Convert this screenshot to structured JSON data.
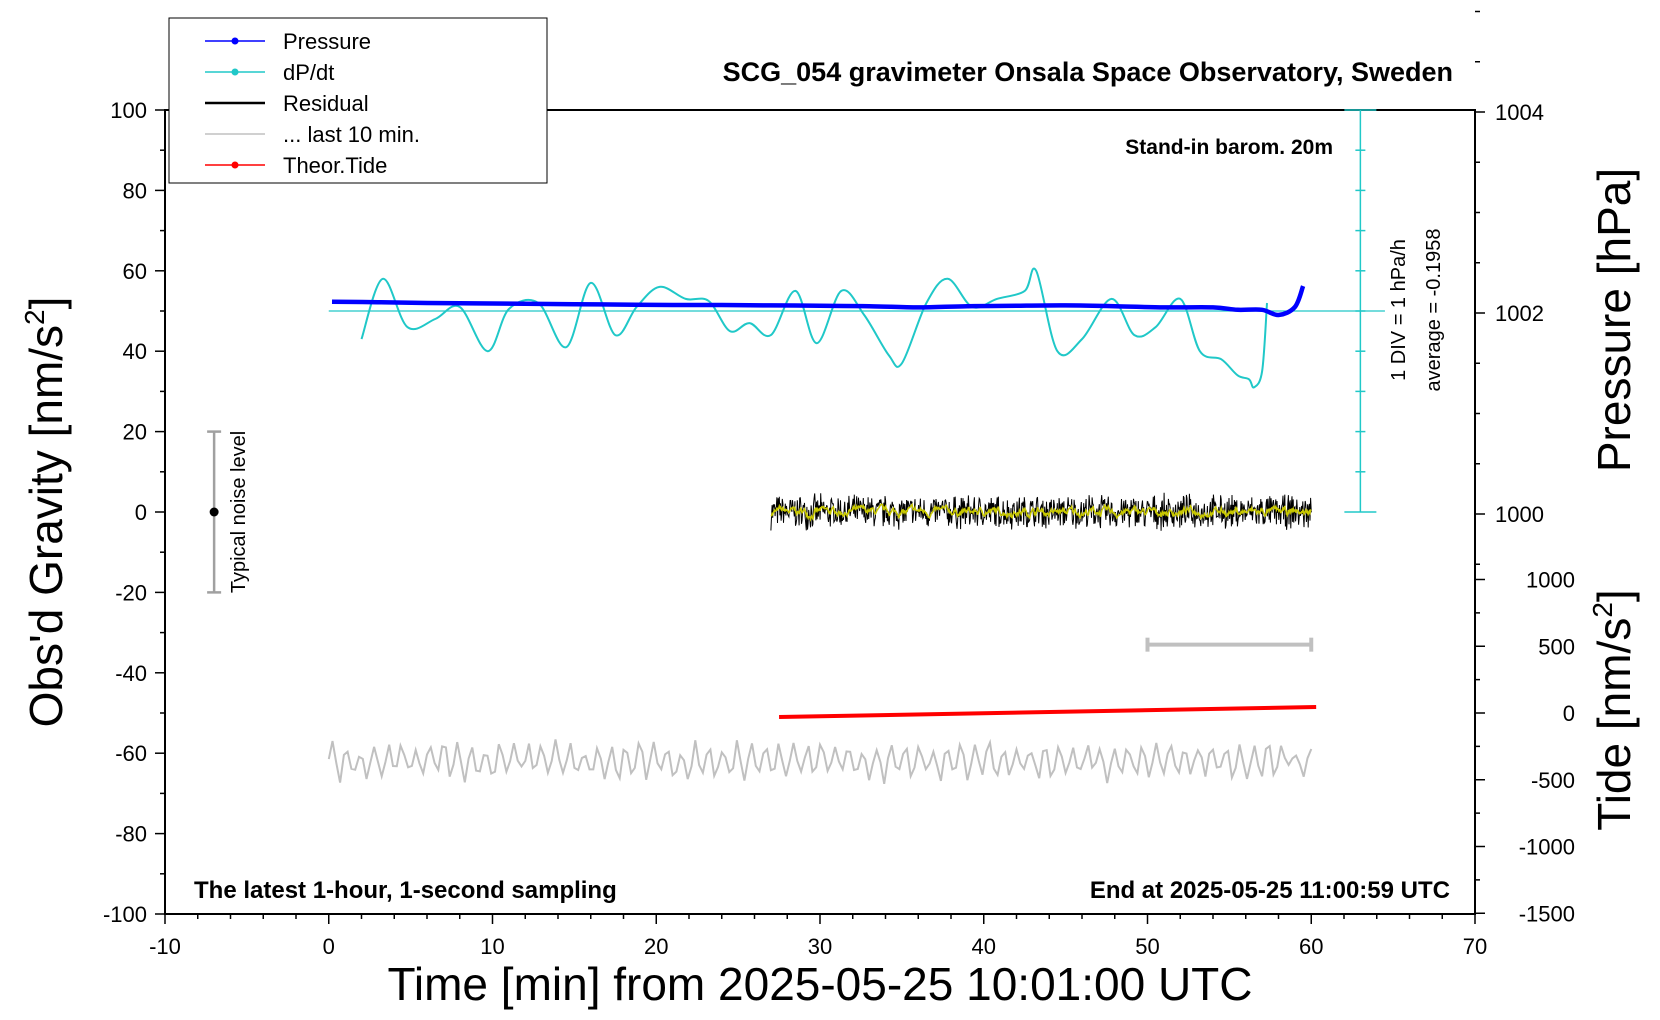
{
  "chart_data": {
    "type": "line",
    "title": "SCG_054 gravimeter Onsala Space Observatory, Sweden",
    "xlabel": "Time [min] from 2025-05-25 10:01:00 UTC",
    "ylabel_left": "Obs'd Gravity [nm/s",
    "ylabel_left_sup": "2",
    "ylabel_left_close": "]",
    "ylabel_right_pressure": "Pressure [hPa]",
    "ylabel_right_tide": "Tide [nm/s",
    "ylabel_right_tide_sup": "2",
    "ylabel_right_tide_close": "]",
    "xlim": [
      -10,
      70
    ],
    "ylim_left": [
      -100,
      100
    ],
    "x_ticks": [
      -10,
      0,
      10,
      20,
      30,
      40,
      50,
      60,
      70
    ],
    "y_ticks_left": [
      -100,
      -80,
      -60,
      -40,
      -20,
      0,
      20,
      40,
      60,
      80,
      100
    ],
    "pressure_ticks": [
      1000,
      1002,
      1004
    ],
    "tide_ticks": [
      -1500,
      -1000,
      -500,
      0,
      500,
      1000
    ],
    "annotations": {
      "barometer": "Stand-in barom. 20m",
      "sampling": "The latest 1-hour, 1-second sampling",
      "end_time": "End at 2025-05-25 11:00:59 UTC",
      "dpdt_scale": "1 DIV = 1 hPa/h",
      "dpdt_average": "average = -0.1958",
      "noise": "Typical noise level"
    },
    "legend": [
      {
        "label": "Pressure",
        "color": "#0000ff",
        "marker": true
      },
      {
        "label": "dP/dt",
        "color": "#20c8c8",
        "marker": true
      },
      {
        "label": "Residual",
        "color": "#000000",
        "marker": false
      },
      {
        "label": "... last 10 min.",
        "color": "#c0c0c0",
        "marker": false
      },
      {
        "label": "Theor.Tide",
        "color": "#ff0000",
        "marker": true
      }
    ],
    "colors": {
      "pressure": "#0000ff",
      "dpdt": "#20c8c8",
      "residual": "#000000",
      "residual_smooth": "#c8c800",
      "last10": "#c0c0c0",
      "tide": "#ff0000",
      "noise": "#a0a0a0"
    },
    "series": {
      "pressure": {
        "name": "Pressure",
        "x": [
          0.2,
          3,
          6,
          9,
          12,
          15,
          18,
          21,
          24,
          27,
          30,
          33,
          36,
          39,
          42,
          45,
          48,
          51,
          54,
          55.5,
          57,
          58,
          59,
          59.5
        ],
        "y": [
          52.3,
          52.2,
          52.0,
          51.9,
          51.8,
          51.7,
          51.6,
          51.5,
          51.5,
          51.4,
          51.3,
          51.2,
          50.9,
          51.2,
          51.3,
          51.4,
          51.2,
          50.9,
          50.9,
          50.3,
          50.3,
          49.0,
          51.0,
          56.2
        ]
      },
      "dpdt": {
        "name": "dP/dt",
        "baseline": 50,
        "x": [
          2,
          3.3,
          4.8,
          6.5,
          8,
          9.7,
          11,
          12.8,
          14.5,
          16,
          17.5,
          18.8,
          20.2,
          21.8,
          23.2,
          24.5,
          25.7,
          27,
          28.5,
          29.8,
          31.3,
          32.7,
          34.2,
          35,
          36.5,
          37.8,
          39.3,
          40.8,
          42.5,
          43.2,
          44.5,
          46,
          47.8,
          49.2,
          50.5,
          52,
          53.2,
          54.5,
          55.5,
          56.2,
          56.5,
          57,
          57.3
        ],
        "y": [
          43,
          58,
          46,
          48,
          51,
          40,
          50.5,
          52,
          41,
          57,
          44,
          51,
          56,
          53,
          52.5,
          45,
          47,
          44,
          55,
          42,
          55,
          49,
          39,
          37,
          52,
          58,
          51,
          53,
          55,
          60,
          40,
          43,
          53,
          44,
          46,
          53,
          40,
          38,
          34,
          33,
          31,
          35,
          52
        ]
      },
      "residual": {
        "name": "Residual",
        "x_start": 27,
        "x_end": 60,
        "center": 0,
        "amplitude": 4,
        "seed": 7
      },
      "last10": {
        "name": "... last 10 min.",
        "x_start": 0,
        "x_end": 60,
        "center": -62,
        "amplitude": 3.5,
        "seed": 21
      },
      "tide": {
        "name": "Theor.Tide",
        "x": [
          27.5,
          60.3
        ],
        "y": [
          -51,
          -48.5
        ]
      }
    },
    "noise_bar": {
      "x": -7,
      "y_low": -20,
      "y_high": 20,
      "center": 0
    },
    "time_bar": {
      "x_start": 50,
      "x_end": 60,
      "y": -33
    },
    "dpdt_axis": {
      "x": 63,
      "y_low": 0,
      "y_high": 100,
      "center": 50,
      "div_step": 10
    }
  }
}
